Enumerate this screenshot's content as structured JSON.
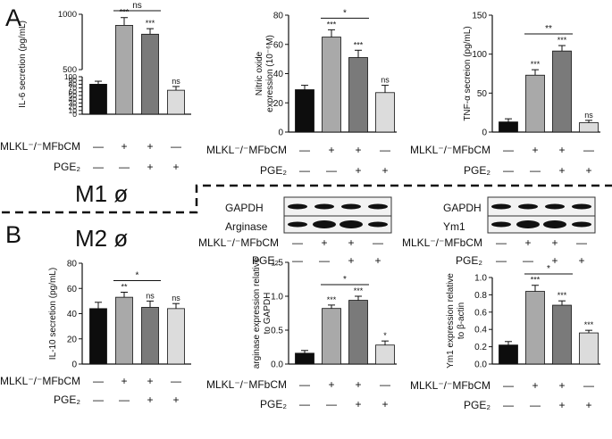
{
  "panel_labels": {
    "a": "A",
    "b": "B"
  },
  "macrophage": {
    "m1": "M1 ø",
    "m2": "M2 ø"
  },
  "condition_rows": {
    "row1": "MLKL⁻/⁻MFbCM",
    "row2": "PGE₂"
  },
  "group_signs": {
    "row1": [
      "—",
      "+",
      "+",
      "—"
    ],
    "row2": [
      "—",
      "—",
      "+",
      "+"
    ]
  },
  "bar_colors": [
    "#0d0d0d",
    "#a9a9a9",
    "#7a7a7a",
    "#dcdcdc"
  ],
  "chart_data": [
    {
      "id": "il6",
      "type": "bar",
      "ylabel": "IL-6 secretion (pg/mL)",
      "broken_axis": true,
      "ylim_lower": [
        0,
        100
      ],
      "ylim_upper": [
        500,
        1000
      ],
      "yticks": [
        "0",
        "10",
        "20",
        "30",
        "40",
        "50",
        "60",
        "70",
        "80",
        "90",
        "100",
        "500",
        "1000"
      ],
      "values": [
        80,
        900,
        820,
        64
      ],
      "errors": [
        8,
        70,
        50,
        10
      ],
      "sig": [
        "",
        "***",
        "***",
        "ns"
      ],
      "brackets": [
        {
          "from": 1,
          "to": 2,
          "label": "ns"
        }
      ]
    },
    {
      "id": "no",
      "type": "bar",
      "ylabel": "Nitric oxide expression (10⁻⁶M)",
      "ylim": [
        0,
        80
      ],
      "yticks": [
        "0",
        "20",
        "40",
        "60",
        "80"
      ],
      "values": [
        29,
        65,
        51,
        27
      ],
      "errors": [
        3,
        5,
        5,
        5
      ],
      "sig": [
        "",
        "***",
        "***",
        "ns"
      ],
      "brackets": [
        {
          "from": 1,
          "to": 2,
          "label": "*"
        }
      ]
    },
    {
      "id": "tnf",
      "type": "bar",
      "ylabel": "TNF-α secreion (pg/mL)",
      "ylim": [
        0,
        150
      ],
      "yticks": [
        "0",
        "50",
        "100",
        "150"
      ],
      "values": [
        13,
        73,
        104,
        12
      ],
      "errors": [
        4,
        7,
        7,
        3
      ],
      "sig": [
        "",
        "***",
        "***",
        "ns"
      ],
      "brackets": [
        {
          "from": 1,
          "to": 2,
          "label": "**"
        }
      ]
    },
    {
      "id": "il10",
      "type": "bar",
      "ylabel": "IL-10 secretion (pg/mL)",
      "ylim": [
        0,
        80
      ],
      "yticks": [
        "0",
        "20",
        "40",
        "60",
        "80"
      ],
      "values": [
        44,
        53,
        45,
        44
      ],
      "errors": [
        5,
        4,
        5,
        4
      ],
      "sig": [
        "",
        "**",
        "ns",
        "ns"
      ],
      "brackets": [
        {
          "from": 1,
          "to": 2,
          "label": "*"
        }
      ]
    },
    {
      "id": "arg",
      "type": "bar",
      "ylabel": "arginase expression relative to GAPDH",
      "ylim": [
        0,
        1.5
      ],
      "yticks": [
        "0.0",
        "0.5",
        "1.0",
        "1.5"
      ],
      "values": [
        0.16,
        0.82,
        0.94,
        0.28
      ],
      "errors": [
        0.04,
        0.05,
        0.06,
        0.06
      ],
      "sig": [
        "",
        "***",
        "***",
        "*"
      ],
      "brackets": [
        {
          "from": 1,
          "to": 2,
          "label": "*"
        }
      ]
    },
    {
      "id": "ym1",
      "type": "bar",
      "ylabel": "Ym1 expression relative to β-actin",
      "ylim": [
        0,
        1.0
      ],
      "yticks": [
        "0.0",
        "0.2",
        "0.4",
        "0.6",
        "0.8",
        "1.0"
      ],
      "values": [
        0.22,
        0.84,
        0.68,
        0.36
      ],
      "errors": [
        0.04,
        0.07,
        0.05,
        0.03
      ],
      "sig": [
        "",
        "***",
        "***",
        "***"
      ],
      "brackets": [
        {
          "from": 1,
          "to": 2,
          "label": "*"
        }
      ]
    }
  ],
  "blots": {
    "left": {
      "labels": [
        "GAPDH",
        "Arginase"
      ]
    },
    "right": {
      "labels": [
        "GAPDH",
        "Ym1"
      ]
    }
  }
}
